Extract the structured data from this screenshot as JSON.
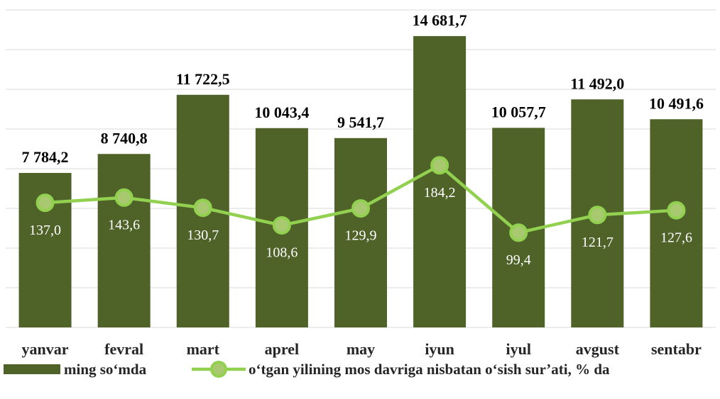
{
  "chart_data": {
    "type": "bar_line",
    "categories": [
      "yanvar",
      "fevral",
      "mart",
      "aprel",
      "may",
      "iyun",
      "iyul",
      "avgust",
      "sentabr"
    ],
    "series": [
      {
        "name": "ming so‘mda",
        "type": "bar",
        "color": "#4f6228",
        "values": [
          7784.2,
          8740.8,
          11722.5,
          10043.4,
          9541.7,
          14681.7,
          10057.7,
          11492.0,
          10491.6
        ],
        "value_labels": [
          "7 784,2",
          "8 740,8",
          "11 722,5",
          "10 043,4",
          "9 541,7",
          "14 681,7",
          "10 057,7",
          "11 492,0",
          "10 491,6"
        ]
      },
      {
        "name": "o‘tgan yilining mos davriga nisbatan o‘sish sur’ati, % da",
        "type": "line",
        "axis": "y2",
        "color": "#92d050",
        "values": [
          137.0,
          143.6,
          130.7,
          108.6,
          129.9,
          184.2,
          99.4,
          121.7,
          127.6
        ],
        "value_labels": [
          "137,0",
          "143,6",
          "130,7",
          "108,6",
          "129,9",
          "184,2",
          "99,4",
          "121,7",
          "127,6"
        ]
      }
    ],
    "ylim": [
      0,
      16000
    ],
    "yticks": [
      0,
      2000,
      4000,
      6000,
      8000,
      10000,
      12000,
      14000,
      16000
    ],
    "y2lim": [
      -20,
      380
    ],
    "grid": true,
    "legend": "bottom"
  }
}
